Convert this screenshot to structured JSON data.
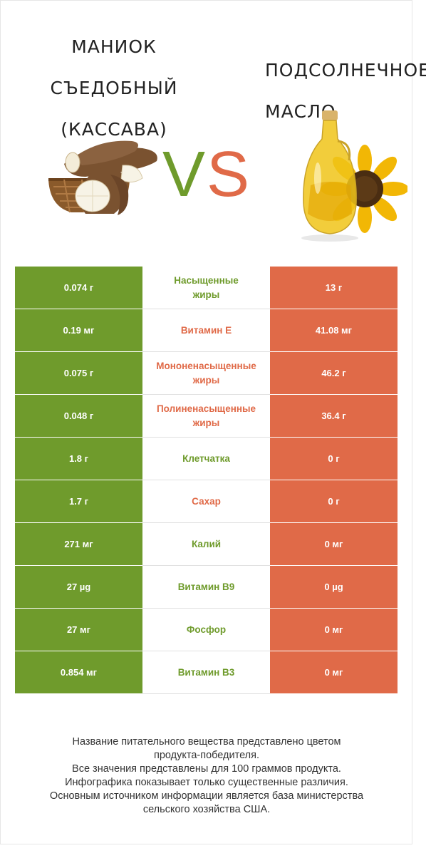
{
  "left_product": {
    "title_lines": [
      "Маниок",
      "съедобный",
      "(Кассава)"
    ],
    "color": "#6f9b2c",
    "image": "cassava-roots-in-basket"
  },
  "right_product": {
    "title_lines": [
      "Подсолнечное",
      "масло"
    ],
    "color": "#e06a48",
    "image": "sunflower-oil-bottle"
  },
  "vs": {
    "v": "V",
    "s": "S"
  },
  "rows": [
    {
      "left": "0.074 г",
      "nutrient": "Насыщенные\nжиры",
      "right": "13 г",
      "winner": "left"
    },
    {
      "left": "0.19 мг",
      "nutrient": "Витамин E",
      "right": "41.08 мг",
      "winner": "right"
    },
    {
      "left": "0.075 г",
      "nutrient": "Мононенасыщенные\nжиры",
      "right": "46.2 г",
      "winner": "right"
    },
    {
      "left": "0.048 г",
      "nutrient": "Полиненасыщенные\nжиры",
      "right": "36.4 г",
      "winner": "right"
    },
    {
      "left": "1.8 г",
      "nutrient": "Клетчатка",
      "right": "0 г",
      "winner": "left"
    },
    {
      "left": "1.7 г",
      "nutrient": "Сахар",
      "right": "0 г",
      "winner": "right"
    },
    {
      "left": "271 мг",
      "nutrient": "Калий",
      "right": "0 мг",
      "winner": "left"
    },
    {
      "left": "27 µg",
      "nutrient": "Витамин B9",
      "right": "0 µg",
      "winner": "left"
    },
    {
      "left": "27 мг",
      "nutrient": "Фосфор",
      "right": "0 мг",
      "winner": "left"
    },
    {
      "left": "0.854 мг",
      "nutrient": "Витамин B3",
      "right": "0 мг",
      "winner": "left"
    }
  ],
  "footer": [
    "Название питательного вещества представлено цветом",
    "продукта-победителя.",
    "Все значения представлены для 100 граммов продукта.",
    "Инфографика показывает только существенные различия.",
    "Основным источником информации является база министерства",
    "сельского хозяйства США."
  ]
}
